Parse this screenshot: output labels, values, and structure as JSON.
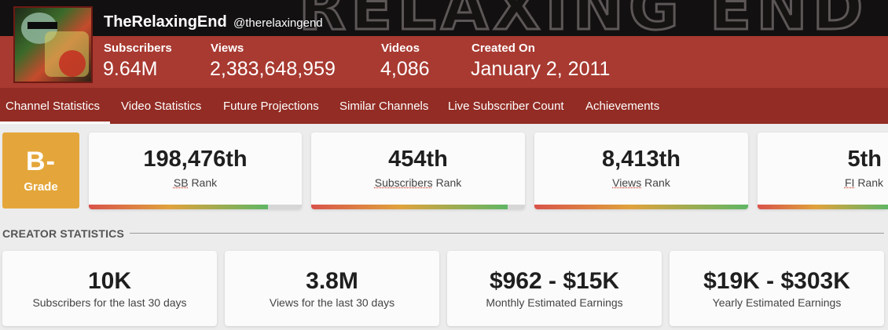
{
  "channel": {
    "name": "TheRelaxingEnd",
    "handle": "@therelaxingend",
    "banner_text": "RELAXING END"
  },
  "header_stats": [
    {
      "label": "Subscribers",
      "value": "9.64M"
    },
    {
      "label": "Views",
      "value": "2,383,648,959"
    },
    {
      "label": "Videos",
      "value": "4,086"
    },
    {
      "label": "Created On",
      "value": "January 2, 2011"
    }
  ],
  "tabs": [
    {
      "label": "Channel Statistics",
      "active": true
    },
    {
      "label": "Video Statistics"
    },
    {
      "label": "Future Projections"
    },
    {
      "label": "Similar Channels"
    },
    {
      "label": "Live Subscriber Count"
    },
    {
      "label": "Achievements"
    }
  ],
  "grade": {
    "letter": "B-",
    "label": "Grade",
    "color": "#e4a63a"
  },
  "ranks": [
    {
      "value": "198,476th",
      "abbr": "SB",
      "suffix": "Rank",
      "fill_fraction": 0.84
    },
    {
      "value": "454th",
      "abbr": "Subscribers",
      "suffix": "Rank",
      "fill_fraction": 0.92
    },
    {
      "value": "8,413th",
      "abbr": "Views",
      "suffix": "Rank",
      "fill_fraction": 1.0
    },
    {
      "value": "5th",
      "abbr": "FI",
      "suffix": "Rank",
      "fill_fraction": 1.0
    }
  ],
  "creator_statistics": {
    "title": "CREATOR STATISTICS",
    "cards": [
      {
        "value": "10K",
        "label": "Subscribers for the last 30 days"
      },
      {
        "value": "3.8M",
        "label": "Views for the last 30 days"
      },
      {
        "value": "$962 - $15K",
        "label": "Monthly Estimated Earnings"
      },
      {
        "value": "$19K - $303K",
        "label": "Yearly Estimated Earnings"
      }
    ]
  },
  "colors": {
    "header_red": "#a83a31",
    "tab_bar": "#922c24",
    "grade_orange": "#e4a63a"
  }
}
